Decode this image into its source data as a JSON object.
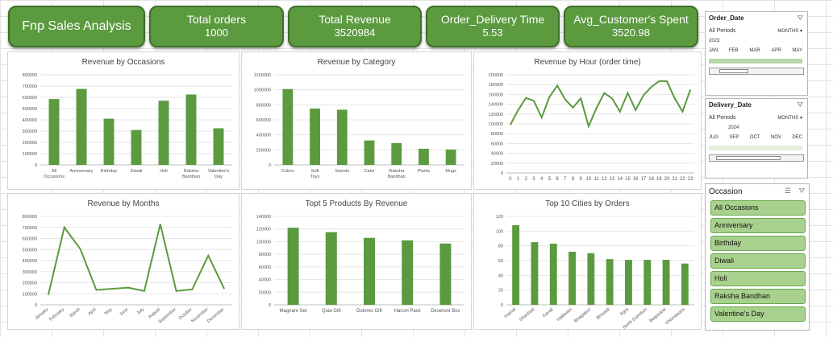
{
  "kpis": {
    "title": "Fnp Sales Analysis",
    "total_orders_label": "Total orders",
    "total_orders_value": "1000",
    "total_revenue_label": "Total Revenue",
    "total_revenue_value": "3520984",
    "delivery_time_label": "Order_Delivery Time",
    "delivery_time_value": "5.53",
    "avg_spent_label": "Avg_Customer's Spent",
    "avg_spent_value": "3520.98"
  },
  "slicers": {
    "order_date": {
      "title": "Order_Date",
      "period": "All Periods",
      "unit": "MONTHS",
      "year": "2023",
      "months": [
        "JAN",
        "FEB",
        "MAR",
        "APR",
        "MAY"
      ]
    },
    "delivery_date": {
      "title": "Delivery_Date",
      "period": "All Periods",
      "unit": "MONTHS",
      "year": "2024",
      "months": [
        "JUG",
        "SEP",
        "OCT",
        "NOV",
        "DEC"
      ]
    },
    "occasion": {
      "title": "Occasion",
      "items": [
        "All Occasions",
        "Anniversary",
        "Birthday",
        "Diwali",
        "Holi",
        "Raksha Bandhan",
        "Valentine's Day"
      ]
    }
  },
  "chart_data": [
    {
      "id": "occasions",
      "type": "bar",
      "title": "Revenue by Occasions",
      "categories": [
        "All Occasions",
        "Anniversary",
        "Birthday",
        "Diwali",
        "Holi",
        "Raksha Bandhan",
        "Valentine's Day"
      ],
      "values": [
        585000,
        675000,
        410000,
        310000,
        570000,
        625000,
        325000
      ],
      "yticks": [
        0,
        100000,
        200000,
        300000,
        400000,
        500000,
        600000,
        700000,
        800000
      ],
      "ylim": [
        0,
        800000
      ],
      "color": "#5b9a3f"
    },
    {
      "id": "category",
      "type": "bar",
      "title": "Revenue by Category",
      "categories": [
        "Colors",
        "Soft Toys",
        "Sweets",
        "Cake",
        "Raksha Bandhan",
        "Plants",
        "Mugs"
      ],
      "values": [
        1010000,
        750000,
        735000,
        325000,
        290000,
        215000,
        205000
      ],
      "yticks": [
        0,
        200000,
        400000,
        600000,
        800000,
        1000000,
        1200000
      ],
      "ylim": [
        0,
        1200000
      ],
      "color": "#5b9a3f"
    },
    {
      "id": "hour",
      "type": "line",
      "title": "Revenue by Hour (order time)",
      "x": [
        0,
        1,
        2,
        3,
        4,
        5,
        6,
        7,
        8,
        9,
        10,
        11,
        12,
        13,
        14,
        15,
        16,
        17,
        18,
        19,
        20,
        21,
        22,
        23
      ],
      "values": [
        98000,
        128000,
        153000,
        147000,
        113000,
        155000,
        178000,
        150000,
        133000,
        152000,
        95000,
        132000,
        163000,
        152000,
        125000,
        163000,
        128000,
        158000,
        175000,
        187000,
        187000,
        152000,
        125000,
        170000
      ],
      "yticks": [
        0,
        20000,
        40000,
        60000,
        80000,
        100000,
        120000,
        140000,
        160000,
        180000,
        200000
      ],
      "ylim": [
        0,
        200000
      ],
      "color": "#5b9a3f"
    },
    {
      "id": "months",
      "type": "line",
      "title": "Revenue by Months",
      "categories": [
        "January",
        "February",
        "March",
        "April",
        "May",
        "June",
        "July",
        "August",
        "September",
        "October",
        "November",
        "December"
      ],
      "values": [
        90000,
        700000,
        505000,
        135000,
        145000,
        155000,
        125000,
        730000,
        125000,
        140000,
        445000,
        145000
      ],
      "yticks": [
        0,
        100000,
        200000,
        300000,
        400000,
        500000,
        600000,
        700000,
        800000
      ],
      "ylim": [
        0,
        800000
      ],
      "color": "#5b9a3f"
    },
    {
      "id": "products",
      "type": "bar",
      "title": "Topt 5 Products By Revenue",
      "categories": [
        "Magnam Set",
        "Quia Gift",
        "Dolores Gift",
        "Harum Pack",
        "Deserunt Box"
      ],
      "values": [
        122000,
        115000,
        106000,
        102000,
        97000
      ],
      "yticks": [
        0,
        20000,
        40000,
        60000,
        80000,
        100000,
        120000,
        140000
      ],
      "ylim": [
        0,
        140000
      ],
      "color": "#5b9a3f"
    },
    {
      "id": "cities",
      "type": "bar",
      "title": "Top 10 Cities by Orders",
      "categories": [
        "Imphal",
        "Dhanbad",
        "Kavali",
        "Haldwani",
        "Bhagalpur",
        "Bhiwadi",
        "Agra",
        "North Dumdum",
        "Begusarai",
        "Chhindwara"
      ],
      "values": [
        108,
        85,
        83,
        72,
        70,
        62,
        61,
        61,
        61,
        56
      ],
      "yticks": [
        0,
        20,
        40,
        60,
        80,
        100,
        120
      ],
      "ylim": [
        0,
        120
      ],
      "color": "#5b9a3f"
    }
  ]
}
